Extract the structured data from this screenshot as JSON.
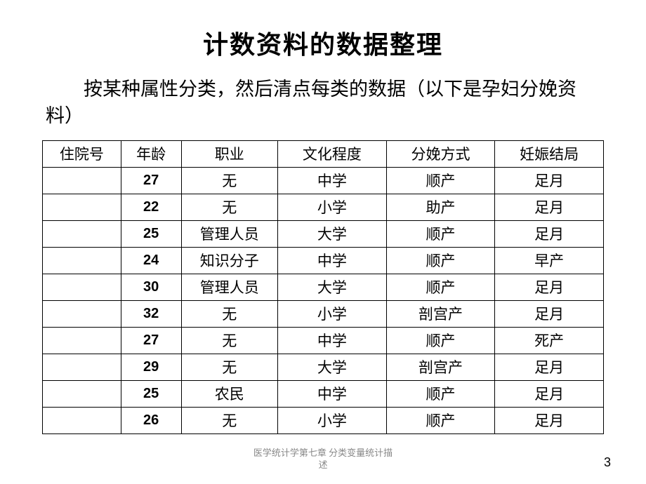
{
  "title": "计数资料的数据整理",
  "subtitle": "按某种属性分类，然后清点每类的数据（以下是孕妇分娩资料）",
  "table": {
    "type": "table",
    "background_color": "#ffffff",
    "border_color": "#000000",
    "header_fontsize": 21,
    "cell_fontsize": 21,
    "age_fontweight": "bold",
    "columns": [
      {
        "label": "住院号",
        "width": "13%"
      },
      {
        "label": "年龄",
        "width": "10%"
      },
      {
        "label": "职业",
        "width": "16%"
      },
      {
        "label": "文化程度",
        "width": "18%"
      },
      {
        "label": "分娩方式",
        "width": "18%"
      },
      {
        "label": "妊娠结局",
        "width": "18%"
      }
    ],
    "rows": [
      {
        "id": "",
        "age": "27",
        "job": "无",
        "edu": "中学",
        "delivery": "顺产",
        "outcome": "足月"
      },
      {
        "id": "",
        "age": "22",
        "job": "无",
        "edu": "小学",
        "delivery": "助产",
        "outcome": "足月"
      },
      {
        "id": "",
        "age": "25",
        "job": "管理人员",
        "edu": "大学",
        "delivery": "顺产",
        "outcome": "足月"
      },
      {
        "id": "",
        "age": "24",
        "job": "知识分子",
        "edu": "中学",
        "delivery": "顺产",
        "outcome": "早产"
      },
      {
        "id": "",
        "age": "30",
        "job": "管理人员",
        "edu": "大学",
        "delivery": "顺产",
        "outcome": "足月"
      },
      {
        "id": "",
        "age": "32",
        "job": "无",
        "edu": "小学",
        "delivery": "剖宫产",
        "outcome": "足月"
      },
      {
        "id": "",
        "age": "27",
        "job": "无",
        "edu": "中学",
        "delivery": "顺产",
        "outcome": "死产"
      },
      {
        "id": "",
        "age": "29",
        "job": "无",
        "edu": "大学",
        "delivery": "剖宫产",
        "outcome": "足月"
      },
      {
        "id": "",
        "age": "25",
        "job": "农民",
        "edu": "中学",
        "delivery": "顺产",
        "outcome": "足月"
      },
      {
        "id": "",
        "age": "26",
        "job": "无",
        "edu": "小学",
        "delivery": "顺产",
        "outcome": "足月"
      }
    ]
  },
  "footer": {
    "text_line1": "医学统计学第七章 分类变量统计描",
    "text_line2": "述",
    "page_number": "3"
  },
  "styling": {
    "title_fontsize": 36,
    "subtitle_fontsize": 27,
    "text_color": "#000000",
    "footer_color": "#888888"
  }
}
